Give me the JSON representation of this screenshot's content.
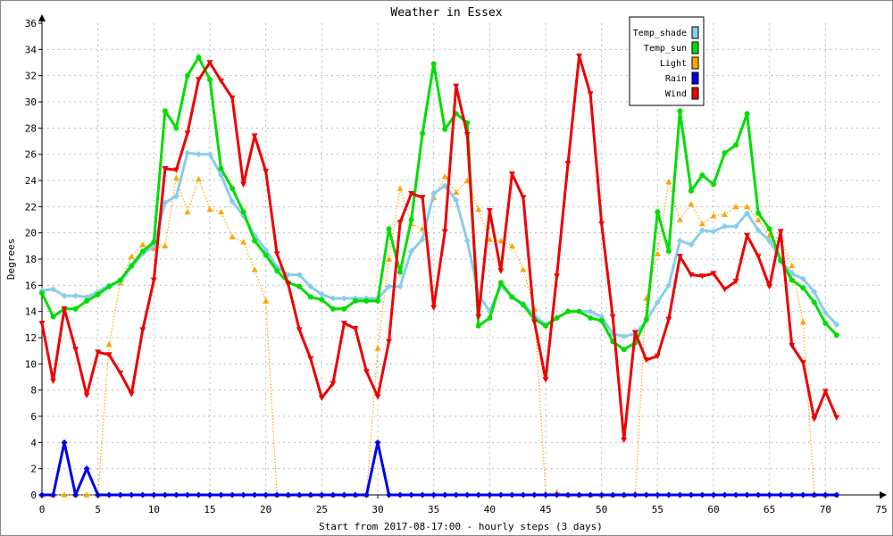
{
  "chart_data": {
    "type": "line",
    "title": "Weather in Essex",
    "xlabel": "Start from 2017-08-17:00 - hourly steps (3 days)",
    "ylabel": "Degrees",
    "xlim": [
      0,
      75
    ],
    "ylim": [
      0,
      36
    ],
    "xticks": [
      0,
      5,
      10,
      15,
      20,
      25,
      30,
      35,
      40,
      45,
      50,
      55,
      60,
      65,
      70,
      75
    ],
    "yticks": [
      0,
      2,
      4,
      6,
      8,
      10,
      12,
      14,
      16,
      18,
      20,
      22,
      24,
      26,
      28,
      30,
      32,
      34,
      36
    ],
    "grid": true,
    "legend_position": "top-right",
    "x": [
      0,
      1,
      2,
      3,
      4,
      5,
      6,
      7,
      8,
      9,
      10,
      11,
      12,
      13,
      14,
      15,
      16,
      17,
      18,
      19,
      20,
      21,
      22,
      23,
      24,
      25,
      26,
      27,
      28,
      29,
      30,
      31,
      32,
      33,
      34,
      35,
      36,
      37,
      38,
      39,
      40,
      41,
      42,
      43,
      44,
      45,
      46,
      47,
      48,
      49,
      50,
      51,
      52,
      53,
      54,
      55,
      56,
      57,
      58,
      59,
      60,
      61,
      62,
      63,
      64,
      65,
      66,
      67,
      68,
      69,
      70,
      71
    ],
    "series": [
      {
        "name": "Temp_shade",
        "color": "#87ceeb",
        "marker": "diamond",
        "style": "solid",
        "values": [
          15.6,
          15.7,
          15.2,
          15.2,
          15.1,
          15.5,
          16.0,
          16.3,
          17.4,
          18.4,
          19.0,
          22.3,
          22.8,
          26.1,
          26.0,
          26.0,
          24.4,
          22.4,
          21.3,
          19.8,
          18.7,
          17.4,
          16.8,
          16.8,
          15.9,
          15.3,
          15.0,
          15.0,
          15.0,
          15.0,
          15.0,
          15.9,
          15.9,
          18.6,
          19.5,
          23.0,
          23.6,
          22.5,
          19.4,
          15.3,
          14.0,
          16.0,
          15.1,
          14.6,
          13.7,
          13.0,
          13.5,
          14.0,
          14.0,
          14.0,
          13.6,
          12.3,
          12.1,
          12.3,
          13.3,
          14.7,
          16.0,
          19.4,
          19.1,
          20.2,
          20.1,
          20.5,
          20.5,
          21.5,
          20.2,
          19.4,
          17.9,
          16.9,
          16.5,
          15.5,
          13.9,
          13.0
        ]
      },
      {
        "name": "Temp_sun",
        "color": "#00dd00",
        "marker": "circle",
        "style": "solid",
        "values": [
          15.4,
          13.6,
          14.2,
          14.2,
          14.8,
          15.3,
          15.9,
          16.4,
          17.5,
          18.6,
          19.3,
          29.3,
          28.0,
          32.0,
          33.4,
          31.7,
          24.9,
          23.4,
          21.6,
          19.4,
          18.3,
          17.1,
          16.2,
          15.9,
          15.1,
          14.9,
          14.2,
          14.2,
          14.8,
          14.8,
          14.8,
          20.3,
          17.0,
          21.0,
          27.6,
          32.9,
          27.9,
          29.1,
          28.4,
          12.9,
          13.5,
          16.2,
          15.1,
          14.5,
          13.4,
          12.9,
          13.5,
          14.0,
          14.0,
          13.5,
          13.3,
          11.7,
          11.1,
          11.6,
          13.4,
          21.6,
          18.6,
          29.3,
          23.2,
          24.4,
          23.7,
          26.1,
          26.7,
          29.1,
          21.5,
          20.3,
          17.9,
          16.4,
          15.8,
          14.7,
          13.1,
          12.2
        ]
      },
      {
        "name": "Light",
        "color": "#ffa500",
        "marker": "triangle",
        "style": "dotted",
        "values": [
          0,
          0,
          0,
          0,
          0,
          0,
          11.5,
          16.2,
          18.2,
          19.1,
          18.8,
          19.0,
          24.2,
          21.6,
          24.1,
          21.8,
          21.6,
          19.7,
          19.3,
          17.2,
          14.8,
          0,
          0,
          0,
          0,
          0,
          0,
          0,
          0,
          0,
          11.2,
          18.0,
          23.4,
          20.7,
          20.3,
          22.7,
          24.3,
          23.1,
          24.0,
          21.8,
          19.5,
          19.4,
          19.0,
          17.2,
          14.2,
          0.1,
          0.2,
          0,
          0,
          0,
          0,
          0,
          0,
          0.1,
          15.0,
          18.4,
          23.9,
          21.0,
          22.2,
          20.7,
          21.3,
          21.4,
          22.0,
          22.0,
          21.0,
          19.8,
          19.5,
          17.5,
          13.2,
          0,
          0,
          0
        ]
      },
      {
        "name": "Rain",
        "color": "#0000ee",
        "marker": "diamond",
        "style": "solid",
        "values": [
          0,
          0,
          4.0,
          0,
          2.0,
          0,
          0,
          0,
          0,
          0,
          0,
          0,
          0,
          0,
          0,
          0,
          0,
          0,
          0,
          0,
          0,
          0,
          0,
          0,
          0,
          0,
          0,
          0,
          0,
          0,
          4.0,
          0,
          0,
          0,
          0,
          0,
          0,
          0,
          0,
          0,
          0,
          0,
          0,
          0,
          0,
          0,
          0,
          0,
          0,
          0,
          0,
          0,
          0,
          0,
          0,
          0,
          0,
          0,
          0,
          0,
          0,
          0,
          0,
          0,
          0,
          0,
          0,
          0,
          0,
          0,
          0,
          0
        ]
      },
      {
        "name": "Wind",
        "color": "#ee0000",
        "marker": "triangle-down",
        "style": "solid",
        "values": [
          13.1,
          8.7,
          14.2,
          11.1,
          7.6,
          10.9,
          10.7,
          9.3,
          7.7,
          12.6,
          16.4,
          24.9,
          24.8,
          27.6,
          31.7,
          33.0,
          31.6,
          30.3,
          23.7,
          27.4,
          24.7,
          18.4,
          16.1,
          12.6,
          10.4,
          7.4,
          8.5,
          13.1,
          12.7,
          9.4,
          7.5,
          11.7,
          20.8,
          23.0,
          22.7,
          14.3,
          20.1,
          31.2,
          27.5,
          13.6,
          21.7,
          17.1,
          24.5,
          22.7,
          13.2,
          8.8,
          16.7,
          25.3,
          33.5,
          30.6,
          20.7,
          13.6,
          4.2,
          12.4,
          10.3,
          10.6,
          13.4,
          18.2,
          16.8,
          16.7,
          16.9,
          15.7,
          16.3,
          19.8,
          18.2,
          15.9,
          20.1,
          11.4,
          10.1,
          5.8,
          7.9,
          5.9
        ]
      }
    ]
  }
}
